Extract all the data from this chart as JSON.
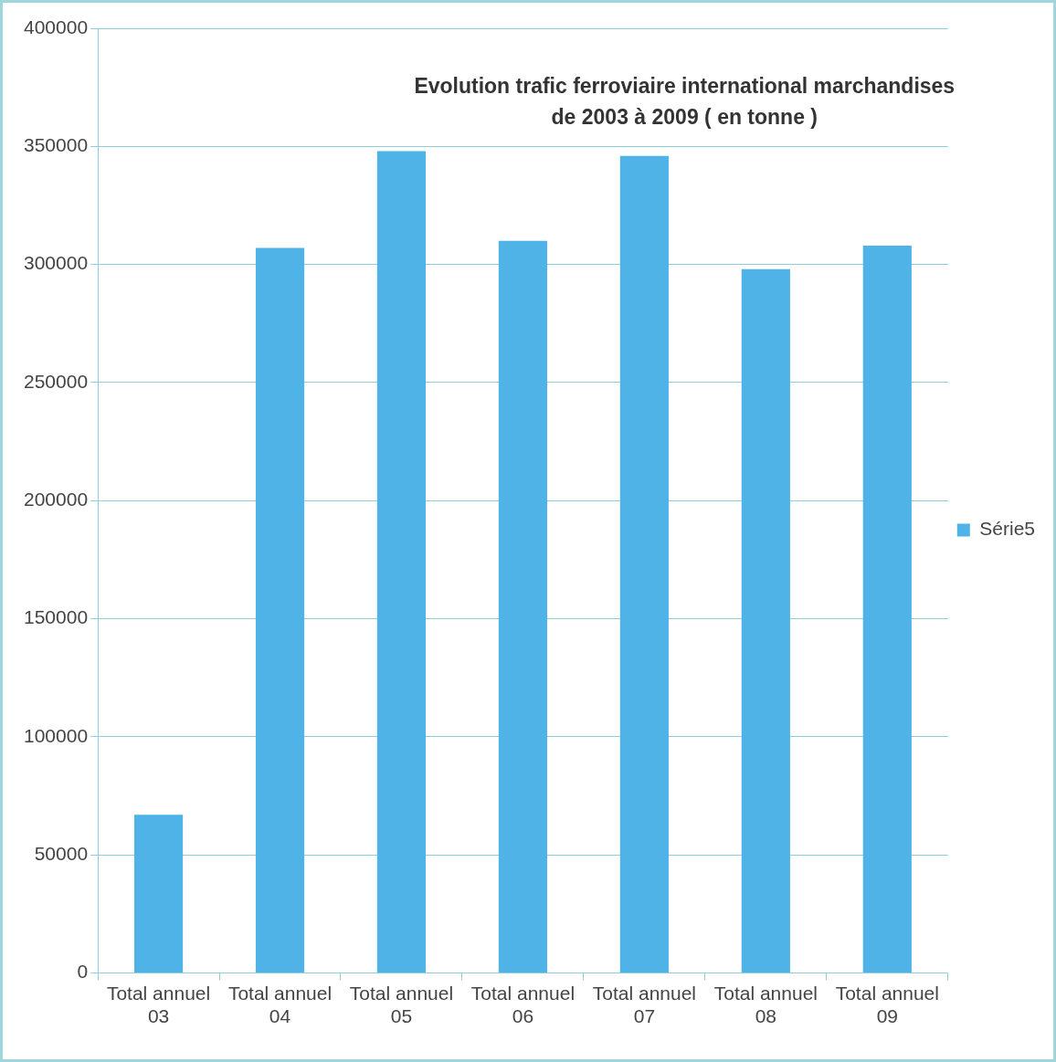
{
  "chart_data": {
    "type": "bar",
    "title": "Evolution trafic ferroviaire international marchandises\nde 2003 à 2009 ( en tonne )",
    "categories": [
      "Total annuel 03",
      "Total annuel 04",
      "Total annuel 05",
      "Total annuel 06",
      "Total annuel 07",
      "Total annuel 08",
      "Total annuel 09"
    ],
    "series": [
      {
        "name": "Série5",
        "color": "#4fb3e8",
        "values": [
          67000,
          307000,
          348000,
          310000,
          346000,
          298000,
          308000
        ]
      }
    ],
    "ylim": [
      0,
      400000
    ],
    "yticks": [
      0,
      50000,
      100000,
      150000,
      200000,
      250000,
      300000,
      350000,
      400000
    ],
    "grid": "y",
    "legend": "right"
  }
}
